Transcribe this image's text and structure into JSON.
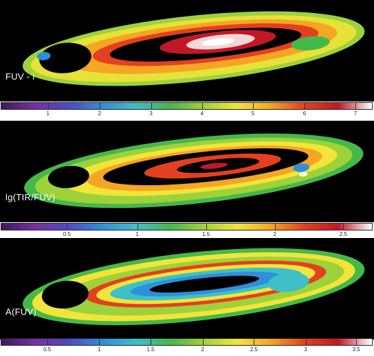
{
  "panels": [
    {
      "label": "FUV - i",
      "colorbar": {
        "stops": [
          "#3a1a5a",
          "#7a2fa0",
          "#4d49c8",
          "#2f8fd8",
          "#3fc0c8",
          "#46b84a",
          "#9ed23a",
          "#f2e53a",
          "#f5a623",
          "#e3401f",
          "#c21826",
          "#ffffff"
        ],
        "ticks": [
          {
            "label": "1",
            "frac": 0.127
          },
          {
            "label": "2",
            "frac": 0.266
          },
          {
            "label": "3",
            "frac": 0.404
          },
          {
            "label": "4",
            "frac": 0.541
          },
          {
            "label": "5",
            "frac": 0.678
          },
          {
            "label": "6",
            "frac": 0.817
          },
          {
            "label": "7",
            "frac": 0.954
          }
        ]
      }
    },
    {
      "label": "lg(TIR/FUV)",
      "colorbar": {
        "stops": [
          "#3a1a5a",
          "#7a2fa0",
          "#4d49c8",
          "#2f8fd8",
          "#3fc0c8",
          "#46b84a",
          "#9ed23a",
          "#f2e53a",
          "#f5a623",
          "#e3401f",
          "#c21826",
          "#ffffff"
        ],
        "ticks": [
          {
            "label": "0.5",
            "frac": 0.178
          },
          {
            "label": "1",
            "frac": 0.367
          },
          {
            "label": "1.5",
            "frac": 0.552
          },
          {
            "label": "2",
            "frac": 0.737
          },
          {
            "label": "2.5",
            "frac": 0.921
          }
        ]
      }
    },
    {
      "label": "A(FUV)",
      "colorbar": {
        "stops": [
          "#3a1a5a",
          "#7a2fa0",
          "#4d49c8",
          "#2f8fd8",
          "#3fc0c8",
          "#46b84a",
          "#9ed23a",
          "#f2e53a",
          "#f5a623",
          "#e3401f",
          "#c21826",
          "#ffffff"
        ],
        "ticks": [
          {
            "label": "0.5",
            "frac": 0.125
          },
          {
            "label": "1",
            "frac": 0.265
          },
          {
            "label": "1.5",
            "frac": 0.403
          },
          {
            "label": "2",
            "frac": 0.543
          },
          {
            "label": "2.5",
            "frac": 0.681
          },
          {
            "label": "3",
            "frac": 0.82
          },
          {
            "label": "3.5",
            "frac": 0.956
          }
        ]
      }
    }
  ]
}
